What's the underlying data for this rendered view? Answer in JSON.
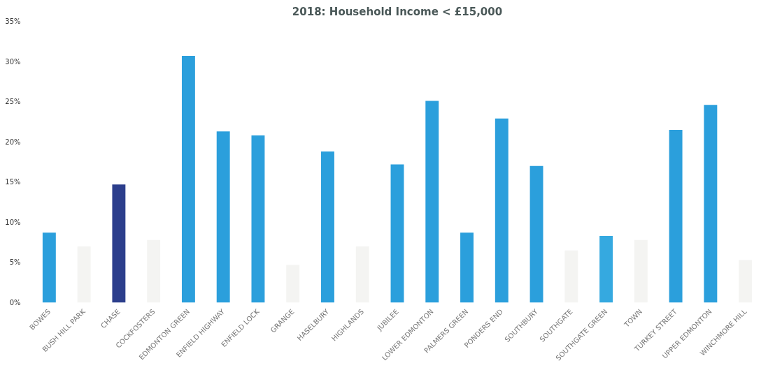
{
  "chart_data": {
    "type": "bar",
    "title": "2018: Household Income < £15,000",
    "categories": [
      "BOWES",
      "BUSH HILL PARK",
      "CHASE",
      "COCKFOSTERS",
      "EDMONTON GREEN",
      "ENFIELD HIGHWAY",
      "ENFIELD LOCK",
      "GRANGE",
      "HASELBURY",
      "HIGHLANDS",
      "JUBILEE",
      "LOWER EDMONTON",
      "PALMERS GREEN",
      "PONDERS END",
      "SOUTHBURY",
      "SOUTHGATE",
      "SOUTHGATE GREEN",
      "TOWN",
      "TURKEY STREET",
      "UPPER EDMONTON",
      "WINCHMORE HILL"
    ],
    "values": [
      8.7,
      7.0,
      14.7,
      7.8,
      30.7,
      21.3,
      20.8,
      4.7,
      18.8,
      7.0,
      17.2,
      25.1,
      8.7,
      22.9,
      17.0,
      6.5,
      8.3,
      7.8,
      21.5,
      24.6,
      5.3
    ],
    "colors": [
      "#2b9fdc",
      "#f4f4f2",
      "#2c3e8c",
      "#f4f4f2",
      "#2b9fdc",
      "#2b9fdc",
      "#2b9fdc",
      "#f4f4f2",
      "#2b9fdc",
      "#f4f4f2",
      "#2b9fdc",
      "#2b9fdc",
      "#2b9fdc",
      "#2b9fdc",
      "#2b9fdc",
      "#f4f4f2",
      "#35a9e0",
      "#f4f4f2",
      "#2b9fdc",
      "#2b9fdc",
      "#f4f4f2"
    ],
    "ylim": [
      0,
      35
    ],
    "yticks": [
      {
        "value": 0,
        "label": "0%"
      },
      {
        "value": 5,
        "label": "5%"
      },
      {
        "value": 10,
        "label": "10%"
      },
      {
        "value": 15,
        "label": "15%"
      },
      {
        "value": 20,
        "label": "20%"
      },
      {
        "value": 25,
        "label": "25%"
      },
      {
        "value": 30,
        "label": "30%"
      },
      {
        "value": 35,
        "label": "35%"
      }
    ],
    "grid": false
  }
}
